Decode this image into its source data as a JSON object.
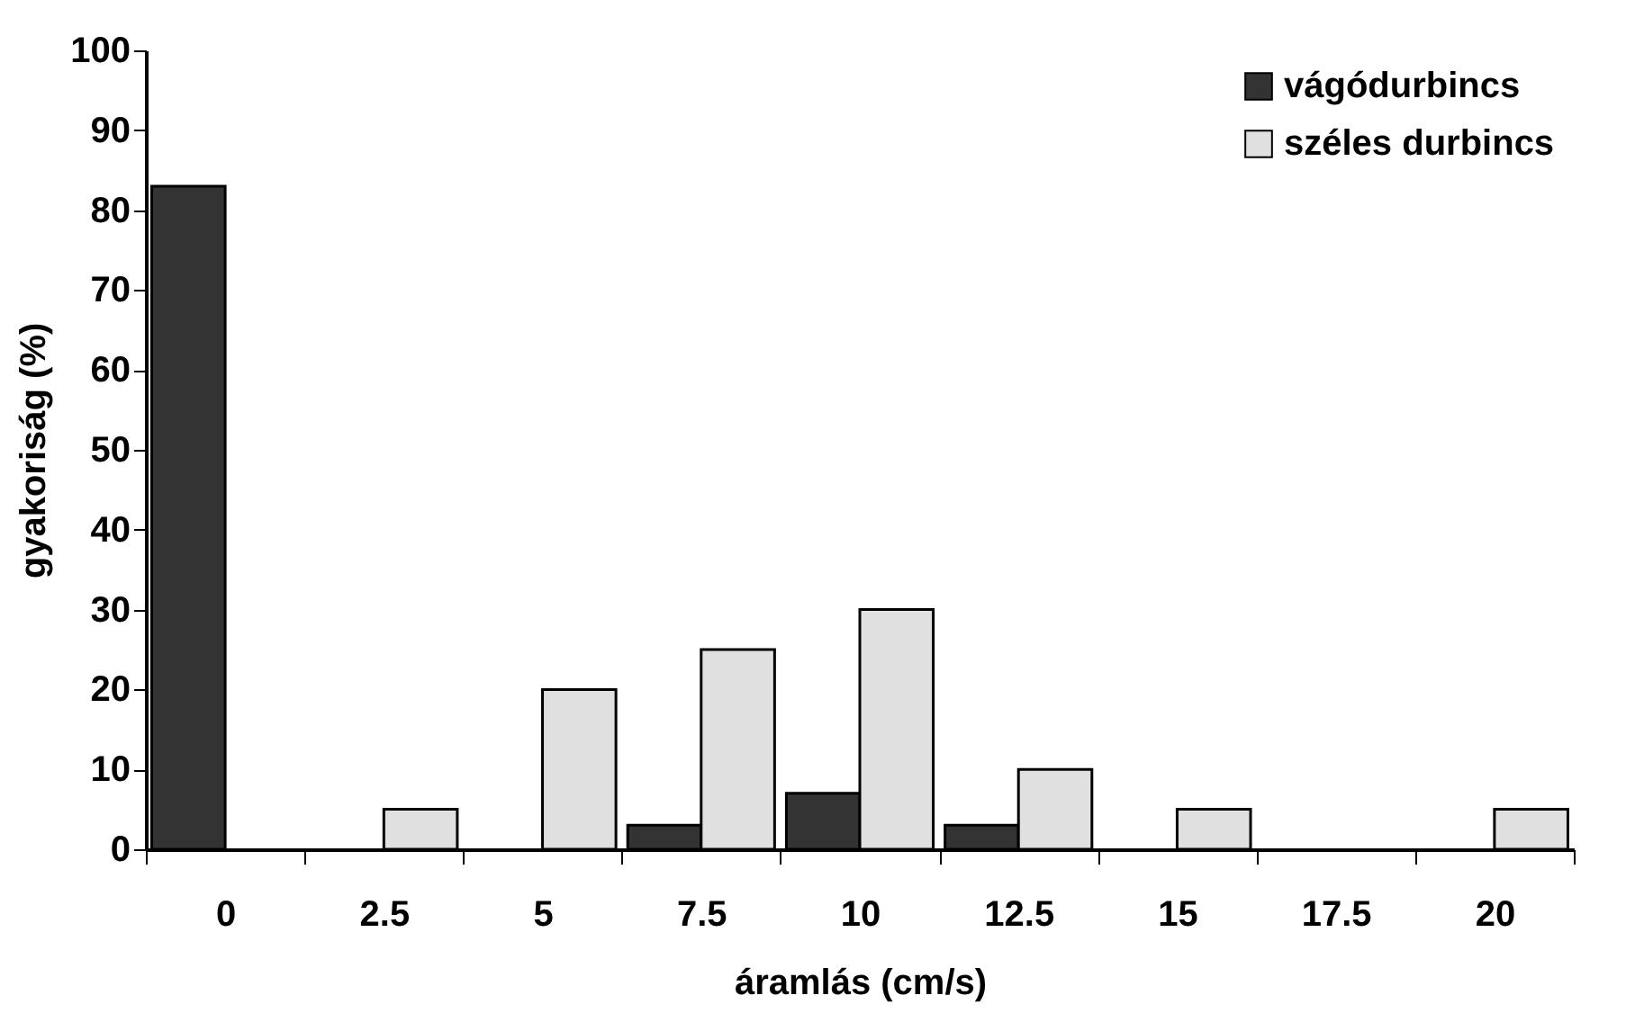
{
  "chart_data": {
    "type": "bar",
    "xlabel": "áramlás (cm/s)",
    "ylabel": "gyakoriság (%)",
    "categories": [
      "0",
      "2.5",
      "5",
      "7.5",
      "10",
      "12.5",
      "15",
      "17.5",
      "20"
    ],
    "series": [
      {
        "name": "vágódurbincs",
        "color": "#333333",
        "values": [
          83,
          0,
          0,
          3,
          7,
          3,
          0,
          0,
          0
        ]
      },
      {
        "name": "széles durbincs",
        "color": "#e0e0e0",
        "values": [
          0,
          5,
          20,
          25,
          30,
          10,
          5,
          0,
          5
        ]
      }
    ],
    "ylim": [
      0,
      100
    ],
    "yticks": [
      0,
      10,
      20,
      30,
      40,
      50,
      60,
      70,
      80,
      90,
      100
    ],
    "legend": "top right"
  }
}
